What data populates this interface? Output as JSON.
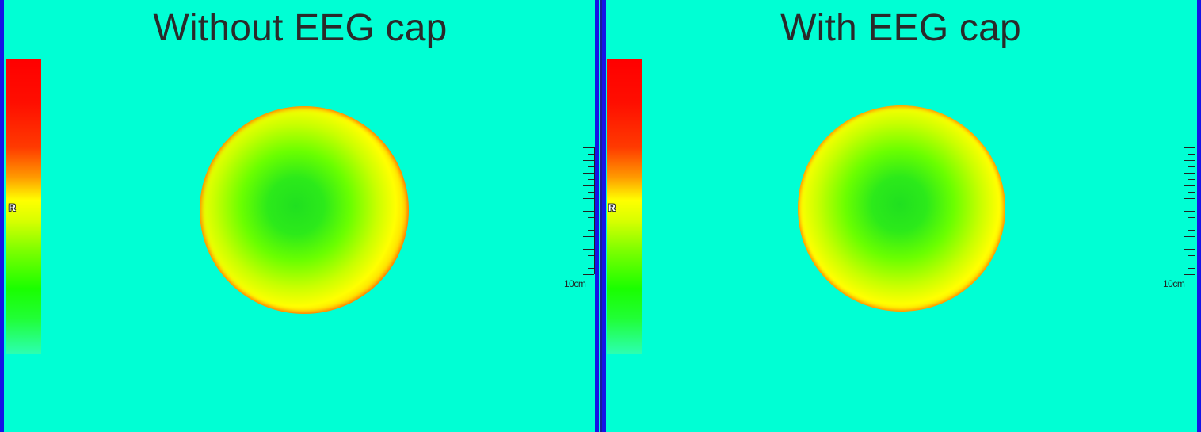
{
  "panels": [
    {
      "title": "Without EEG cap",
      "colorbar_label": "R",
      "scale_label": "10cm"
    },
    {
      "title": "With EEG cap",
      "colorbar_label": "R",
      "scale_label": "10cm"
    }
  ],
  "colors": {
    "background": "#00ffd4",
    "border_blue": "#1515e6",
    "colormap_high": "#ff0000",
    "colormap_mid": "#ffff00",
    "colormap_low": "#1aff00"
  }
}
